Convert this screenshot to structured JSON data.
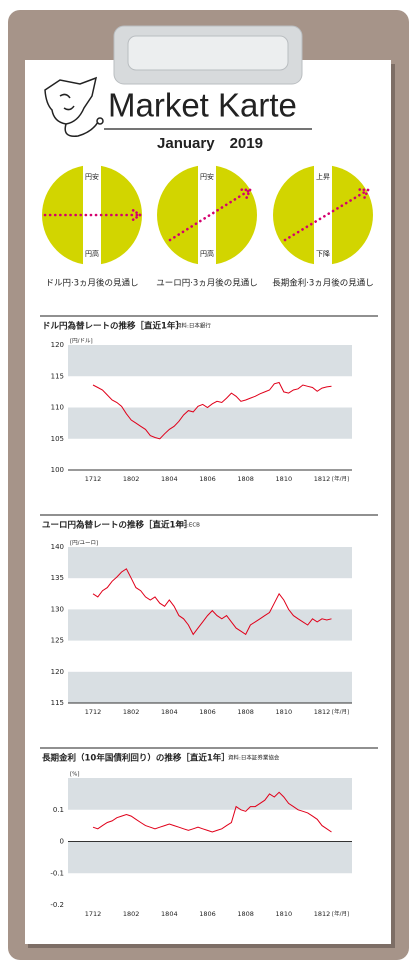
{
  "header": {
    "title": "Market Karte",
    "date": "January　2019"
  },
  "outlook": [
    {
      "top": "円安",
      "bottom": "円高",
      "caption": "ドル円·3ヵ月後の見通し"
    },
    {
      "top": "円安",
      "bottom": "円高",
      "caption": "ユーロ円·3ヵ月後の見通し"
    },
    {
      "top": "上昇",
      "bottom": "下降",
      "caption": "長期金利·3ヵ月後の見通し"
    }
  ],
  "chart_data": [
    {
      "type": "line",
      "title": "ドル円為替レートの推移［直近1年］",
      "source": "資料:日本銀行",
      "y_unit": "[円/ドル]",
      "x_unit": "[年/月]",
      "categories": [
        "1712",
        null,
        null,
        null,
        null,
        null,
        null,
        null,
        "1802",
        null,
        null,
        null,
        null,
        null,
        null,
        null,
        "1804",
        null,
        null,
        null,
        null,
        null,
        null,
        null,
        "1806",
        null,
        null,
        null,
        null,
        null,
        null,
        null,
        "1808",
        null,
        null,
        null,
        null,
        null,
        null,
        null,
        "1810",
        null,
        null,
        null,
        null,
        null,
        null,
        null,
        "1812",
        null,
        null
      ],
      "values": [
        113.6,
        113.2,
        112.8,
        112.0,
        111.2,
        110.8,
        110.2,
        109.0,
        108.0,
        107.5,
        107.0,
        106.5,
        105.5,
        105.2,
        105.0,
        105.8,
        106.5,
        107.0,
        107.8,
        108.8,
        109.5,
        109.3,
        110.2,
        110.5,
        110.0,
        110.6,
        111.0,
        110.8,
        111.5,
        112.3,
        111.8,
        111.0,
        111.2,
        111.5,
        111.8,
        112.2,
        112.5,
        112.8,
        113.8,
        114.0,
        112.5,
        112.3,
        112.8,
        113.0,
        113.6,
        113.4,
        113.2,
        112.6,
        113.1,
        113.3,
        113.4
      ],
      "color": "#e0001a",
      "ylim": [
        100,
        120
      ],
      "yticks": [
        100,
        105,
        110,
        115,
        120
      ],
      "grid": true
    },
    {
      "type": "line",
      "title": "ユーロ円為替レートの推移［直近1年］",
      "source": "資料:ECB",
      "y_unit": "[円/ユーロ]",
      "x_unit": "[年/月]",
      "categories": [
        "1712",
        null,
        null,
        null,
        null,
        null,
        null,
        null,
        "1802",
        null,
        null,
        null,
        null,
        null,
        null,
        null,
        "1804",
        null,
        null,
        null,
        null,
        null,
        null,
        null,
        "1806",
        null,
        null,
        null,
        null,
        null,
        null,
        null,
        "1808",
        null,
        null,
        null,
        null,
        null,
        null,
        null,
        "1810",
        null,
        null,
        null,
        null,
        null,
        null,
        null,
        "1812",
        null,
        null
      ],
      "values": [
        132.5,
        132.0,
        133.0,
        133.5,
        134.5,
        135.2,
        136.0,
        136.5,
        135.0,
        133.5,
        133.0,
        132.0,
        131.5,
        132.0,
        131.0,
        130.5,
        131.5,
        130.5,
        129.0,
        128.5,
        127.5,
        126.0,
        127.0,
        128.0,
        129.0,
        129.8,
        129.0,
        128.5,
        129.0,
        128.0,
        127.0,
        126.5,
        126.0,
        127.5,
        128.0,
        128.5,
        129.0,
        129.5,
        131.0,
        132.5,
        131.5,
        130.0,
        129.0,
        128.5,
        128.0,
        127.5,
        128.5,
        128.0,
        128.5,
        128.3,
        128.5
      ],
      "color": "#e0001a",
      "ylim": [
        115,
        140
      ],
      "yticks": [
        115,
        120,
        125,
        130,
        135,
        140
      ],
      "grid": true
    },
    {
      "type": "line",
      "title": "長期金利（10年国債利回り）の推移［直近1年］",
      "source": "資料:日本証券業協会",
      "y_unit": "[%]",
      "x_unit": "[年/月]",
      "categories": [
        "1712",
        null,
        null,
        null,
        null,
        null,
        null,
        null,
        "1802",
        null,
        null,
        null,
        null,
        null,
        null,
        null,
        "1804",
        null,
        null,
        null,
        null,
        null,
        null,
        null,
        "1806",
        null,
        null,
        null,
        null,
        null,
        null,
        null,
        "1808",
        null,
        null,
        null,
        null,
        null,
        null,
        null,
        "1810",
        null,
        null,
        null,
        null,
        null,
        null,
        null,
        "1812",
        null,
        null
      ],
      "values": [
        0.045,
        0.04,
        0.05,
        0.06,
        0.065,
        0.075,
        0.08,
        0.085,
        0.08,
        0.07,
        0.06,
        0.05,
        0.045,
        0.04,
        0.045,
        0.05,
        0.055,
        0.05,
        0.045,
        0.04,
        0.035,
        0.04,
        0.045,
        0.04,
        0.035,
        0.03,
        0.035,
        0.04,
        0.05,
        0.06,
        0.11,
        0.1,
        0.095,
        0.11,
        0.11,
        0.12,
        0.13,
        0.15,
        0.14,
        0.155,
        0.14,
        0.12,
        0.11,
        0.1,
        0.095,
        0.09,
        0.08,
        0.07,
        0.05,
        0.04,
        0.03
      ],
      "color": "#e0001a",
      "ylim": [
        -0.2,
        0.2
      ],
      "yticks": [
        -0.2,
        -0.1,
        0,
        0.1
      ],
      "grid": true
    }
  ]
}
